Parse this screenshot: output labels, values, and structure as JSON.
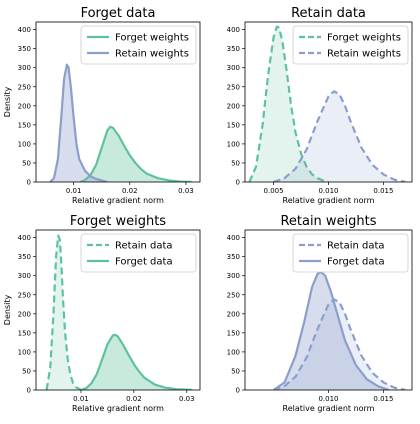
{
  "colors": {
    "forget": "#5ec39b",
    "retain": "#8c9ecb"
  },
  "chart_data": [
    {
      "type": "area",
      "title": "Forget data",
      "xlabel": "Relative gradient norm",
      "ylabel": "Density",
      "xlim": [
        0.0033,
        0.0325
      ],
      "ylim": [
        0,
        420
      ],
      "xticks": [
        0.01,
        0.02,
        0.03
      ],
      "xtick_labels": [
        "0.01",
        "0.02",
        "0.03"
      ],
      "yticks": [
        0,
        50,
        100,
        150,
        200,
        250,
        300,
        350,
        400
      ],
      "legend": "upper right",
      "series": [
        {
          "name": "Forget weights",
          "color_key": "forget",
          "dashed": false,
          "x": [
            0.0112,
            0.012,
            0.013,
            0.014,
            0.015,
            0.016,
            0.0165,
            0.017,
            0.018,
            0.019,
            0.02,
            0.021,
            0.022,
            0.023,
            0.025,
            0.027,
            0.029,
            0.031
          ],
          "y": [
            0,
            5,
            18,
            45,
            90,
            135,
            145,
            142,
            122,
            95,
            70,
            50,
            34,
            22,
            10,
            4,
            1,
            0
          ]
        },
        {
          "name": "Retain weights",
          "color_key": "retain",
          "dashed": false,
          "x": [
            0.0058,
            0.0065,
            0.0072,
            0.0078,
            0.0083,
            0.0088,
            0.0091,
            0.0095,
            0.01,
            0.0105,
            0.011,
            0.012,
            0.013,
            0.014,
            0.015,
            0.016
          ],
          "y": [
            0,
            10,
            60,
            170,
            270,
            308,
            300,
            250,
            170,
            100,
            60,
            30,
            15,
            8,
            4,
            0
          ]
        }
      ]
    },
    {
      "type": "area",
      "title": "Retain data",
      "xlabel": "Relative gradient norm",
      "ylabel": "",
      "xlim": [
        0.0024,
        0.0176
      ],
      "ylim": [
        0,
        420
      ],
      "xticks": [
        0.005,
        0.01,
        0.015
      ],
      "xtick_labels": [
        "0.005",
        "0.010",
        "0.015"
      ],
      "yticks": [
        0,
        50,
        100,
        150,
        200,
        250,
        300,
        350,
        400
      ],
      "legend": "upper right",
      "series": [
        {
          "name": "Forget weights",
          "color_key": "forget",
          "dashed": true,
          "x": [
            0.0028,
            0.0034,
            0.004,
            0.0045,
            0.005,
            0.0053,
            0.0055,
            0.0058,
            0.0062,
            0.0066,
            0.007,
            0.0075,
            0.008,
            0.0085,
            0.009,
            0.0095,
            0.01
          ],
          "y": [
            0,
            40,
            150,
            280,
            380,
            408,
            405,
            370,
            290,
            200,
            130,
            75,
            40,
            20,
            10,
            4,
            0
          ]
        },
        {
          "name": "Retain weights",
          "color_key": "retain",
          "dashed": true,
          "x": [
            0.005,
            0.006,
            0.007,
            0.008,
            0.009,
            0.01,
            0.0105,
            0.011,
            0.0115,
            0.012,
            0.013,
            0.014,
            0.015,
            0.016,
            0.017
          ],
          "y": [
            0,
            10,
            35,
            85,
            160,
            225,
            238,
            230,
            200,
            160,
            90,
            45,
            20,
            6,
            0
          ]
        }
      ]
    },
    {
      "type": "area",
      "title": "Forget weights",
      "xlabel": "Relative gradient norm",
      "ylabel": "Density",
      "xlim": [
        0.0015,
        0.0325
      ],
      "ylim": [
        0,
        420
      ],
      "xticks": [
        0.01,
        0.02,
        0.03
      ],
      "xtick_labels": [
        "0.01",
        "0.02",
        "0.03"
      ],
      "yticks": [
        0,
        50,
        100,
        150,
        200,
        250,
        300,
        350,
        400
      ],
      "legend": "upper right",
      "series": [
        {
          "name": "Retain data",
          "color_key": "forget",
          "dashed": true,
          "x": [
            0.0035,
            0.0042,
            0.0048,
            0.0053,
            0.0057,
            0.006,
            0.0063,
            0.0066,
            0.007,
            0.0075,
            0.008,
            0.0085,
            0.009,
            0.01
          ],
          "y": [
            0,
            60,
            200,
            350,
            405,
            395,
            330,
            240,
            150,
            80,
            40,
            18,
            8,
            0
          ]
        },
        {
          "name": "Forget data",
          "color_key": "forget",
          "dashed": false,
          "x": [
            0.01,
            0.011,
            0.012,
            0.013,
            0.014,
            0.015,
            0.016,
            0.0165,
            0.017,
            0.018,
            0.019,
            0.02,
            0.021,
            0.022,
            0.024,
            0.026,
            0.028,
            0.03,
            0.031
          ],
          "y": [
            0,
            5,
            18,
            42,
            80,
            120,
            143,
            145,
            140,
            118,
            92,
            68,
            48,
            32,
            14,
            6,
            2,
            1,
            0
          ]
        }
      ]
    },
    {
      "type": "area",
      "title": "Retain weights",
      "xlabel": "Relative gradient norm",
      "ylabel": "",
      "xlim": [
        0.0024,
        0.0176
      ],
      "ylim": [
        0,
        420
      ],
      "xticks": [
        0.01,
        0.015
      ],
      "xtick_labels": [
        "0.010",
        "0.015"
      ],
      "yticks": [
        0,
        50,
        100,
        150,
        200,
        250,
        300,
        350,
        400
      ],
      "legend": "upper right",
      "series": [
        {
          "name": "Retain data",
          "color_key": "retain",
          "dashed": true,
          "x": [
            0.005,
            0.006,
            0.007,
            0.008,
            0.009,
            0.01,
            0.0105,
            0.011,
            0.0115,
            0.012,
            0.013,
            0.014,
            0.015,
            0.016,
            0.017
          ],
          "y": [
            0,
            10,
            35,
            85,
            160,
            225,
            238,
            230,
            200,
            160,
            90,
            45,
            20,
            6,
            0
          ]
        },
        {
          "name": "Forget data",
          "color_key": "retain",
          "dashed": false,
          "x": [
            0.005,
            0.006,
            0.007,
            0.0078,
            0.0085,
            0.009,
            0.0093,
            0.0097,
            0.0102,
            0.0108,
            0.0115,
            0.0125,
            0.0135,
            0.0145,
            0.0155
          ],
          "y": [
            0,
            20,
            90,
            180,
            270,
            305,
            310,
            300,
            260,
            200,
            130,
            65,
            28,
            10,
            0
          ]
        }
      ]
    }
  ]
}
